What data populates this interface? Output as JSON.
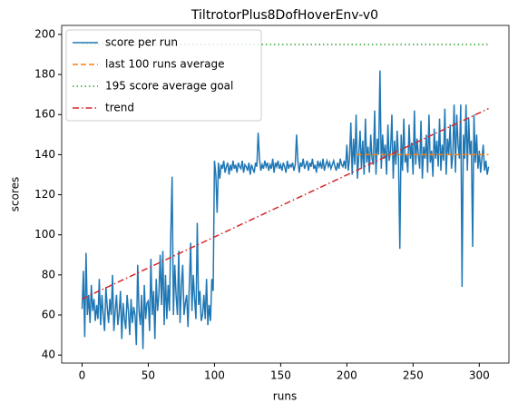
{
  "chart_data": {
    "type": "line",
    "title": "TiltrotorPlus8DofHoverEnv-v0",
    "x_label": "runs",
    "y_label": "scores",
    "x": [
      0,
      1,
      2,
      3,
      4,
      5,
      6,
      7,
      8,
      9,
      10,
      11,
      12,
      13,
      14,
      15,
      16,
      17,
      18,
      19,
      20,
      21,
      22,
      23,
      24,
      25,
      26,
      27,
      28,
      29,
      30,
      31,
      32,
      33,
      34,
      35,
      36,
      37,
      38,
      39,
      40,
      41,
      42,
      43,
      44,
      45,
      46,
      47,
      48,
      49,
      50,
      51,
      52,
      53,
      54,
      55,
      56,
      57,
      58,
      59,
      60,
      61,
      62,
      63,
      64,
      65,
      66,
      67,
      68,
      69,
      70,
      71,
      72,
      73,
      74,
      75,
      76,
      77,
      78,
      79,
      80,
      81,
      82,
      83,
      84,
      85,
      86,
      87,
      88,
      89,
      90,
      91,
      92,
      93,
      94,
      95,
      96,
      97,
      98,
      99,
      100,
      101,
      102,
      103,
      104,
      105,
      106,
      107,
      108,
      109,
      110,
      111,
      112,
      113,
      114,
      115,
      116,
      117,
      118,
      119,
      120,
      121,
      122,
      123,
      124,
      125,
      126,
      127,
      128,
      129,
      130,
      131,
      132,
      133,
      134,
      135,
      136,
      137,
      138,
      139,
      140,
      141,
      142,
      143,
      144,
      145,
      146,
      147,
      148,
      149,
      150,
      151,
      152,
      153,
      154,
      155,
      156,
      157,
      158,
      159,
      160,
      161,
      162,
      163,
      164,
      165,
      166,
      167,
      168,
      169,
      170,
      171,
      172,
      173,
      174,
      175,
      176,
      177,
      178,
      179,
      180,
      181,
      182,
      183,
      184,
      185,
      186,
      187,
      188,
      189,
      190,
      191,
      192,
      193,
      194,
      195,
      196,
      197,
      198,
      199,
      200,
      201,
      202,
      203,
      204,
      205,
      206,
      207,
      208,
      209,
      210,
      211,
      212,
      213,
      214,
      215,
      216,
      217,
      218,
      219,
      220,
      221,
      222,
      223,
      224,
      225,
      226,
      227,
      228,
      229,
      230,
      231,
      232,
      233,
      234,
      235,
      236,
      237,
      238,
      239,
      240,
      241,
      242,
      243,
      244,
      245,
      246,
      247,
      248,
      249,
      250,
      251,
      252,
      253,
      254,
      255,
      256,
      257,
      258,
      259,
      260,
      261,
      262,
      263,
      264,
      265,
      266,
      267,
      268,
      269,
      270,
      271,
      272,
      273,
      274,
      275,
      276,
      277,
      278,
      279,
      280,
      281,
      282,
      283,
      284,
      285,
      286,
      287,
      288,
      289,
      290,
      291,
      292,
      293,
      294,
      295,
      296,
      297,
      298,
      299,
      300,
      301,
      302,
      303,
      304,
      305,
      306,
      307
    ],
    "series": [
      {
        "name": "score per run",
        "color": "#1f77b4",
        "dash": "solid",
        "values": [
          63,
          82,
          49,
          91,
          60,
          70,
          56,
          75,
          62,
          68,
          57,
          65,
          58,
          78,
          55,
          70,
          60,
          52,
          74,
          64,
          56,
          68,
          60,
          80,
          52,
          62,
          70,
          55,
          61,
          72,
          48,
          66,
          58,
          53,
          70,
          62,
          50,
          68,
          56,
          64,
          60,
          45,
          85,
          62,
          55,
          70,
          43,
          75,
          58,
          66,
          67,
          52,
          88,
          60,
          72,
          48,
          78,
          62,
          70,
          90,
          65,
          92,
          55,
          80,
          58,
          75,
          62,
          100,
          129,
          60,
          85,
          70,
          60,
          92,
          56,
          74,
          85,
          60,
          66,
          70,
          54,
          75,
          96,
          62,
          80,
          68,
          58,
          106,
          65,
          72,
          57,
          60,
          70,
          58,
          78,
          55,
          65,
          57,
          78,
          72,
          137,
          130,
          111,
          136,
          128,
          135,
          133,
          137,
          131,
          134,
          136,
          130,
          135,
          132,
          137,
          133,
          135,
          131,
          136,
          134,
          133,
          137,
          131,
          135,
          134,
          132,
          136,
          130,
          135,
          133,
          131,
          136,
          134,
          151,
          138,
          132,
          135,
          133,
          137,
          134,
          136,
          132,
          135,
          133,
          138,
          131,
          136,
          134,
          137,
          133,
          135,
          132,
          136,
          134,
          131,
          137,
          133,
          135,
          134,
          136,
          132,
          135,
          150,
          137,
          131,
          136,
          134,
          138,
          133,
          135,
          137,
          132,
          136,
          134,
          138,
          133,
          135,
          131,
          137,
          134,
          136,
          133,
          138,
          132,
          135,
          137,
          134,
          136,
          133,
          135,
          137,
          134,
          132,
          136,
          133,
          138,
          135,
          134,
          137,
          133,
          145,
          132,
          138,
          156,
          130,
          148,
          135,
          160,
          128,
          140,
          152,
          133,
          147,
          130,
          158,
          136,
          144,
          131,
          150,
          138,
          135,
          162,
          130,
          148,
          140,
          182,
          133,
          150,
          138,
          145,
          130,
          155,
          137,
          142,
          160,
          128,
          147,
          135,
          152,
          138,
          93,
          150,
          132,
          158,
          136,
          140,
          131,
          155,
          138,
          146,
          130,
          162,
          135,
          148,
          140,
          133,
          157,
          128,
          144,
          138,
          150,
          131,
          160,
          136,
          142,
          129,
          153,
          138,
          147,
          134,
          158,
          132,
          145,
          137,
          163,
          130,
          148,
          140,
          155,
          133,
          140,
          165,
          131,
          160,
          145,
          138,
          165,
          74,
          150,
          138,
          165,
          132,
          158,
          140,
          147,
          94,
          160,
          136,
          150,
          133,
          142,
          131,
          138,
          145,
          132,
          137,
          130,
          134
        ]
      },
      {
        "name": "last 100 runs average",
        "color": "#ff7f0e",
        "dash": "dashed",
        "x": [
          207,
          307
        ],
        "values": [
          140,
          140
        ]
      },
      {
        "name": "195 score average goal",
        "color": "#2ca02c",
        "dash": "dotted",
        "x": [
          0,
          307
        ],
        "values": [
          195,
          195
        ]
      },
      {
        "name": "trend",
        "color": "#d62728",
        "dash": "dashdot",
        "x": [
          0,
          307
        ],
        "values": [
          68,
          163
        ]
      }
    ],
    "xlim": [
      -15.4,
      322.4
    ],
    "ylim": [
      36,
      204.5
    ],
    "xticks": [
      0,
      50,
      100,
      150,
      200,
      250,
      300
    ],
    "yticks": [
      40,
      60,
      80,
      100,
      120,
      140,
      160,
      180,
      200
    ],
    "legend": "upper left"
  }
}
